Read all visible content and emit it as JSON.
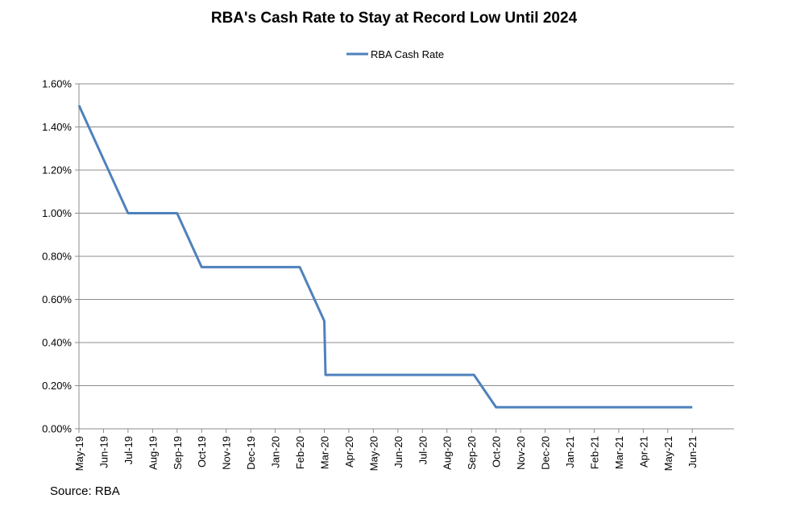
{
  "source_label": "Source: RBA",
  "chart_data": {
    "type": "line",
    "title": "RBA's Cash Rate to Stay at Record Low Until 2024",
    "xlabel": "",
    "ylabel": "",
    "ylim": [
      0,
      1.6
    ],
    "y_ticks": [
      0,
      0.2,
      0.4,
      0.6,
      0.8,
      1.0,
      1.2,
      1.4,
      1.6
    ],
    "y_tick_labels": [
      "0.00%",
      "0.20%",
      "0.40%",
      "0.60%",
      "0.80%",
      "1.00%",
      "1.20%",
      "1.40%",
      "1.60%"
    ],
    "categories": [
      "May-19",
      "Jun-19",
      "Jul-19",
      "Aug-19",
      "Sep-19",
      "Oct-19",
      "Nov-19",
      "Dec-19",
      "Jan-20",
      "Feb-20",
      "Mar-20",
      "Apr-20",
      "May-20",
      "Jun-20",
      "Jul-20",
      "Aug-20",
      "Sep-20",
      "Oct-20",
      "Nov-20",
      "Dec-20",
      "Jan-21",
      "Feb-21",
      "Mar-21",
      "Apr-21",
      "May-21",
      "Jun-21"
    ],
    "x_tick_labels": [
      "May-19",
      "Jun-19",
      "Jul-19",
      "Aug-19",
      "Sep-19",
      "Oct-19",
      "Nov-19",
      "Dec-19",
      "Jan-20",
      "Feb-20",
      "Mar-20",
      "Apr-20",
      "May-20",
      "Jun-20",
      "Jul-20",
      "Aug-20",
      "Sep-20",
      "Oct-20",
      "Nov-20",
      "Dec-20",
      "Jan-21",
      "Feb-21",
      "Mar-21",
      "Apr-21",
      "May-21",
      "Jun-21"
    ],
    "grid": true,
    "legend_position": "top-center",
    "series": [
      {
        "name": "RBA Cash Rate",
        "color": "#4F81BD",
        "points": [
          [
            "May-19",
            1.5
          ],
          [
            "Jul-19",
            1.0
          ],
          [
            "Sep-19",
            1.0
          ],
          [
            "Oct-19",
            0.75
          ],
          [
            "Feb-20",
            0.75
          ],
          [
            "Mar-20",
            0.5
          ],
          [
            "Mar-20",
            0.25
          ],
          [
            "Sep-20",
            0.25
          ],
          [
            "Oct-20",
            0.1
          ],
          [
            "Jun-21",
            0.1
          ]
        ]
      }
    ]
  }
}
